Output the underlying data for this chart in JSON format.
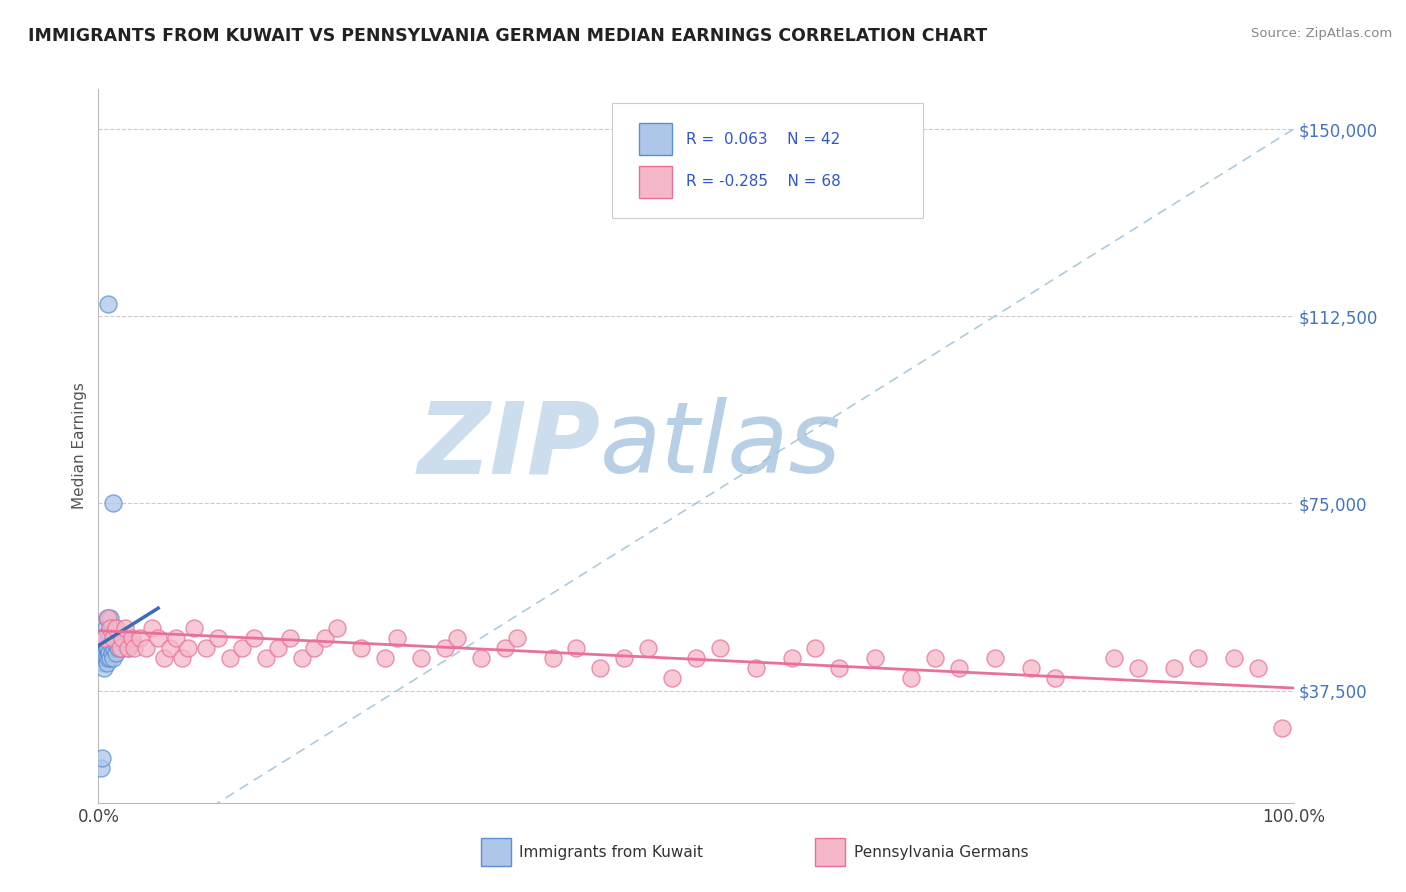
{
  "title": "IMMIGRANTS FROM KUWAIT VS PENNSYLVANIA GERMAN MEDIAN EARNINGS CORRELATION CHART",
  "source": "Source: ZipAtlas.com",
  "ylabel": "Median Earnings",
  "yticks": [
    37500,
    75000,
    112500,
    150000
  ],
  "xmin": 0.0,
  "xmax": 1.0,
  "ymin": 15000,
  "ymax": 158000,
  "legend_r1": "R =  0.063",
  "legend_n1": "N = 42",
  "legend_r2": "R = -0.285",
  "legend_n2": "N = 68",
  "color_blue_fill": "#aec6e8",
  "color_blue_edge": "#5b8fd4",
  "color_blue_line": "#3d6cb5",
  "color_pink_fill": "#f5b8c8",
  "color_pink_edge": "#e8709a",
  "color_pink_line": "#e8709a",
  "color_dashed": "#9bbdd4",
  "watermark_zip": "ZIP",
  "watermark_atlas": "atlas",
  "watermark_color_zip": "#ccdded",
  "watermark_color_atlas": "#b8d0e5",
  "blue_x": [
    0.002,
    0.003,
    0.003,
    0.004,
    0.004,
    0.005,
    0.005,
    0.005,
    0.006,
    0.006,
    0.006,
    0.007,
    0.007,
    0.007,
    0.008,
    0.008,
    0.008,
    0.009,
    0.009,
    0.01,
    0.01,
    0.01,
    0.011,
    0.011,
    0.012,
    0.012,
    0.013,
    0.014,
    0.015,
    0.015,
    0.016,
    0.017,
    0.018,
    0.019,
    0.02,
    0.021,
    0.022,
    0.024,
    0.025,
    0.028,
    0.012,
    0.008
  ],
  "blue_y": [
    22000,
    24000,
    44000,
    43000,
    46000,
    42000,
    45000,
    48000,
    44000,
    46000,
    50000,
    43000,
    46000,
    52000,
    44000,
    46000,
    49000,
    45000,
    48000,
    44000,
    47000,
    52000,
    45000,
    50000,
    44000,
    49000,
    46000,
    47000,
    45000,
    50000,
    46000,
    47000,
    48000,
    46000,
    48000,
    47000,
    48000,
    47000,
    46000,
    47000,
    75000,
    115000
  ],
  "pink_x": [
    0.005,
    0.008,
    0.01,
    0.012,
    0.015,
    0.018,
    0.02,
    0.022,
    0.025,
    0.028,
    0.03,
    0.035,
    0.04,
    0.045,
    0.05,
    0.055,
    0.06,
    0.065,
    0.07,
    0.075,
    0.08,
    0.09,
    0.1,
    0.11,
    0.12,
    0.13,
    0.14,
    0.15,
    0.16,
    0.17,
    0.18,
    0.19,
    0.2,
    0.22,
    0.24,
    0.25,
    0.27,
    0.29,
    0.3,
    0.32,
    0.34,
    0.35,
    0.38,
    0.4,
    0.42,
    0.44,
    0.46,
    0.48,
    0.5,
    0.52,
    0.55,
    0.58,
    0.6,
    0.62,
    0.65,
    0.68,
    0.7,
    0.72,
    0.75,
    0.78,
    0.8,
    0.85,
    0.87,
    0.9,
    0.92,
    0.95,
    0.97,
    0.99
  ],
  "pink_y": [
    48000,
    52000,
    50000,
    48000,
    50000,
    46000,
    48000,
    50000,
    46000,
    48000,
    46000,
    48000,
    46000,
    50000,
    48000,
    44000,
    46000,
    48000,
    44000,
    46000,
    50000,
    46000,
    48000,
    44000,
    46000,
    48000,
    44000,
    46000,
    48000,
    44000,
    46000,
    48000,
    50000,
    46000,
    44000,
    48000,
    44000,
    46000,
    48000,
    44000,
    46000,
    48000,
    44000,
    46000,
    42000,
    44000,
    46000,
    40000,
    44000,
    46000,
    42000,
    44000,
    46000,
    42000,
    44000,
    40000,
    44000,
    42000,
    44000,
    42000,
    40000,
    44000,
    42000,
    42000,
    44000,
    44000,
    42000,
    30000
  ],
  "blue_line_x0": 0.0,
  "blue_line_x1": 0.05,
  "blue_line_y0": 46500,
  "blue_line_y1": 54000,
  "pink_line_x0": 0.0,
  "pink_line_x1": 1.0,
  "pink_line_y0": 49500,
  "pink_line_y1": 38000
}
